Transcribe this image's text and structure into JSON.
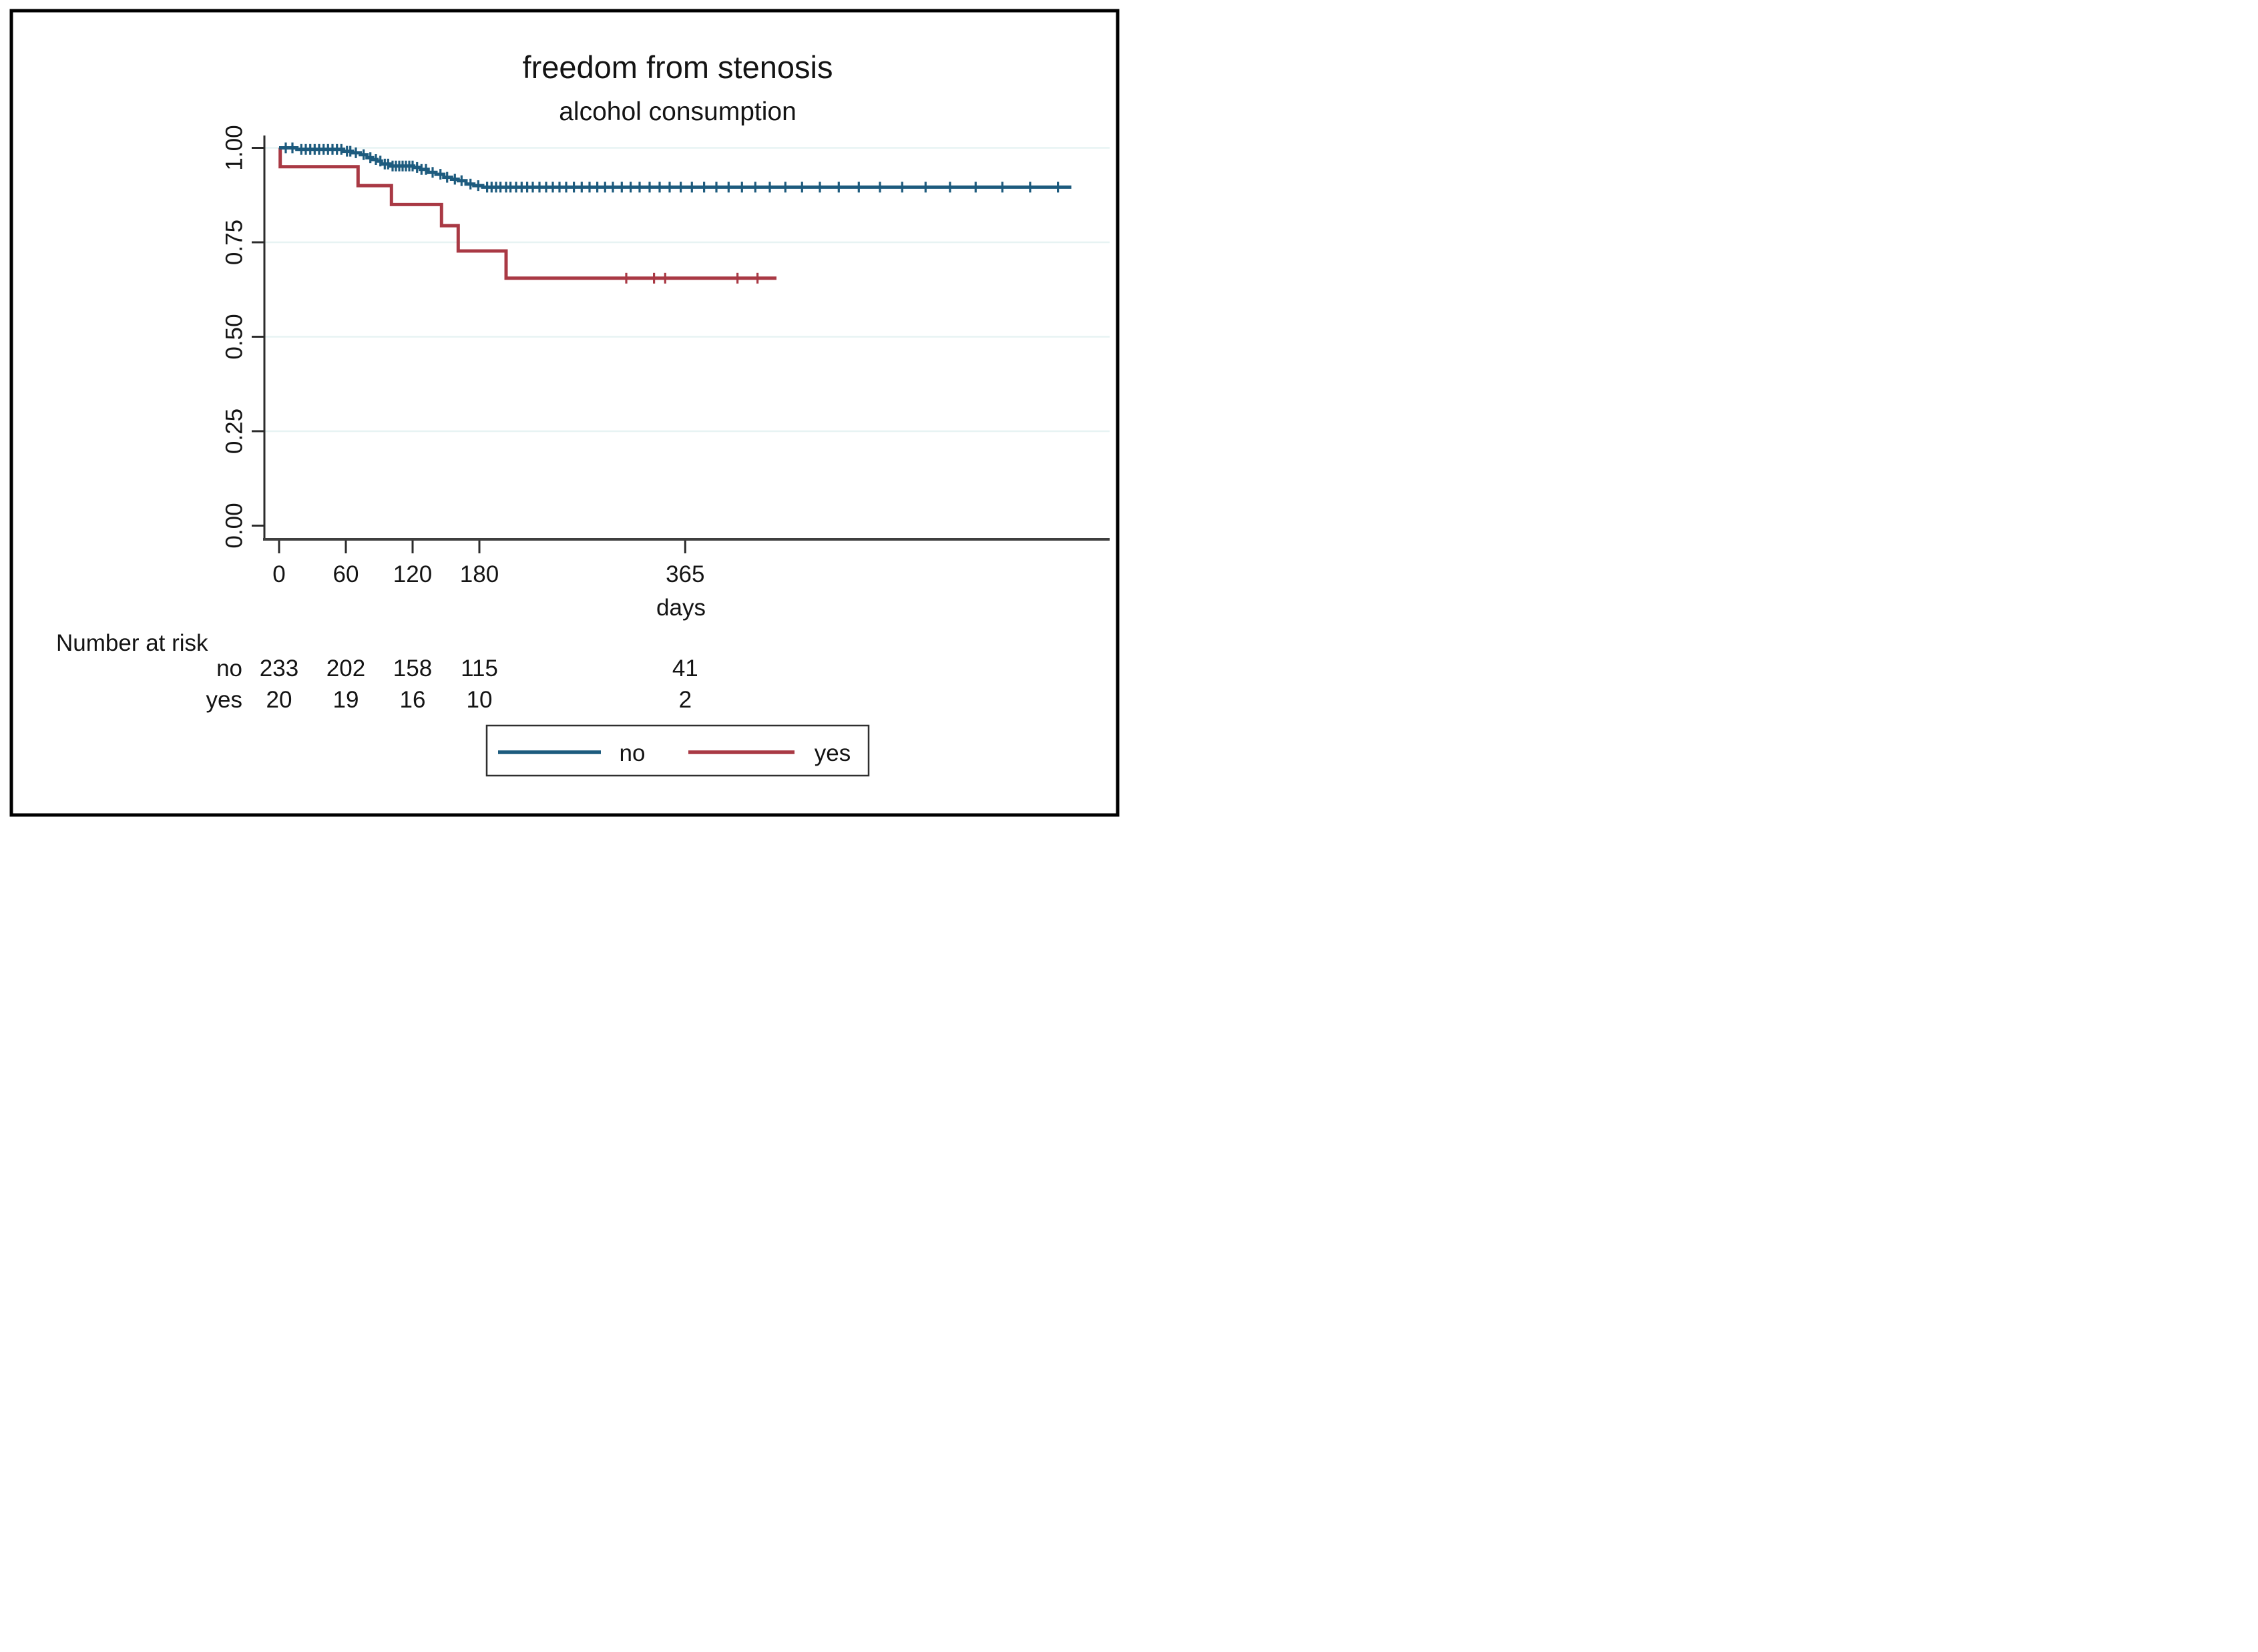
{
  "chart_data": {
    "type": "line",
    "subtype": "kaplan_meier_step",
    "title": "freedom from stenosis",
    "subtitle": "alcohol consumption",
    "xlabel": "days",
    "ylabel": "",
    "xticks": [
      0,
      60,
      120,
      180,
      365
    ],
    "yticks": [
      "0.00",
      "0.25",
      "0.50",
      "0.75",
      "1.00"
    ],
    "xlim": [
      0,
      745
    ],
    "ylim": [
      0.0,
      1.0
    ],
    "grid": "horizontal",
    "legend_position": "bottom-center",
    "colors": {
      "title": "#1f3864",
      "subtitle": "#141414",
      "grid": "#e7f3f3",
      "axis": "#2b2b2b",
      "series_no": "#1d5b7e",
      "series_yes": "#a93944"
    },
    "series": [
      {
        "name": "no",
        "label": "no",
        "color": "#1d5b7e",
        "end_day": 712,
        "steps": [
          [
            0,
            1.0
          ],
          [
            16,
            0.996
          ],
          [
            58,
            0.991
          ],
          [
            66,
            0.987
          ],
          [
            73,
            0.982
          ],
          [
            79,
            0.974
          ],
          [
            84,
            0.969
          ],
          [
            88,
            0.965
          ],
          [
            92,
            0.957
          ],
          [
            100,
            0.952
          ],
          [
            121,
            0.948
          ],
          [
            127,
            0.943
          ],
          [
            134,
            0.935
          ],
          [
            141,
            0.93
          ],
          [
            148,
            0.922
          ],
          [
            155,
            0.917
          ],
          [
            161,
            0.913
          ],
          [
            168,
            0.904
          ],
          [
            175,
            0.9
          ],
          [
            183,
            0.896
          ]
        ],
        "censor_days": [
          6,
          12,
          20,
          24,
          28,
          32,
          36,
          40,
          44,
          48,
          52,
          56,
          61,
          64,
          69,
          76,
          82,
          87,
          91,
          95,
          98,
          102,
          105,
          108,
          111,
          114,
          117,
          120,
          124,
          128,
          132,
          138,
          145,
          151,
          158,
          164,
          172,
          179,
          187,
          191,
          195,
          199,
          204,
          208,
          213,
          218,
          223,
          228,
          234,
          240,
          246,
          252,
          258,
          265,
          272,
          279,
          286,
          293,
          300,
          308,
          316,
          324,
          333,
          342,
          351,
          361,
          371,
          382,
          393,
          404,
          416,
          428,
          441,
          455,
          470,
          486,
          503,
          521,
          540,
          560,
          581,
          603,
          626,
          650,
          675,
          700
        ]
      },
      {
        "name": "yes",
        "label": "yes",
        "color": "#a93944",
        "end_day": 447,
        "steps": [
          [
            0,
            1.0
          ],
          [
            1,
            0.95
          ],
          [
            71,
            0.9
          ],
          [
            101,
            0.85
          ],
          [
            146,
            0.794
          ],
          [
            161,
            0.727
          ],
          [
            204,
            0.655
          ]
        ],
        "censor_days": [
          312,
          337,
          347,
          412,
          430
        ]
      }
    ],
    "risk_table": {
      "title": "Number at risk",
      "times": [
        0,
        60,
        120,
        180,
        365
      ],
      "rows": [
        {
          "label": "no",
          "counts": [
            233,
            202,
            158,
            115,
            41
          ]
        },
        {
          "label": "yes",
          "counts": [
            20,
            19,
            16,
            10,
            2
          ]
        }
      ]
    },
    "legend": {
      "entries": [
        {
          "label": "no",
          "color": "#1d5b7e"
        },
        {
          "label": "yes",
          "color": "#a93944"
        }
      ]
    }
  }
}
